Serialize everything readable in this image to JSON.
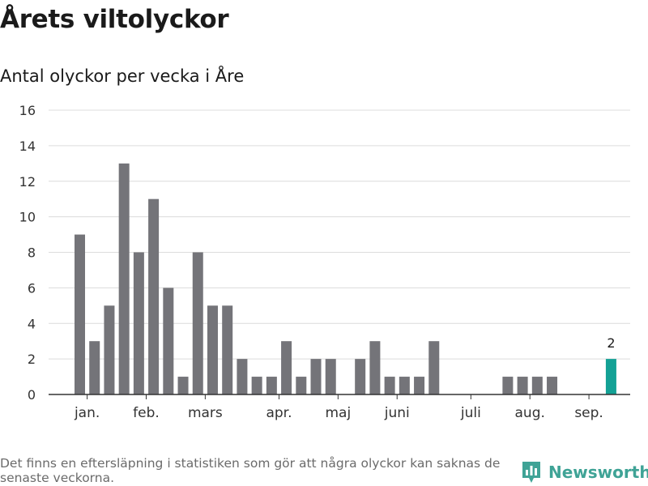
{
  "title": "Årets viltolyckor",
  "subtitle": "Antal olyckor per vecka i Åre",
  "footnote": "Det finns en eftersläpning i statistiken som gör att några olyckor kan saknas de senaste veckorna.",
  "brand": {
    "name": "Newsworthy",
    "icon": "newsworthy-bar-chart-logo-icon",
    "color": "#3fa396"
  },
  "chart_data": {
    "type": "bar",
    "x_unit": "week",
    "x": [
      1,
      2,
      3,
      4,
      5,
      6,
      7,
      8,
      9,
      10,
      11,
      12,
      13,
      14,
      15,
      16,
      17,
      18,
      19,
      20,
      21,
      22,
      23,
      24,
      25,
      26,
      27,
      28,
      29,
      30,
      31,
      32,
      33,
      34,
      35,
      36,
      37,
      38
    ],
    "values": [
      9,
      3,
      5,
      13,
      8,
      11,
      6,
      1,
      8,
      5,
      5,
      2,
      1,
      1,
      3,
      1,
      2,
      2,
      0,
      2,
      3,
      1,
      1,
      1,
      3,
      0,
      0,
      0,
      0,
      1,
      1,
      1,
      1,
      0,
      0,
      0,
      2,
      null
    ],
    "highlight_index": 36,
    "highlight_label": "2",
    "ylim": [
      0,
      16
    ],
    "yticks": [
      0,
      2,
      4,
      6,
      8,
      10,
      12,
      14,
      16
    ],
    "xticks": [
      {
        "label": "jan.",
        "week": 1.5
      },
      {
        "label": "feb.",
        "week": 5.5
      },
      {
        "label": "mars",
        "week": 9.5
      },
      {
        "label": "apr.",
        "week": 14.5
      },
      {
        "label": "maj",
        "week": 18.5
      },
      {
        "label": "juni",
        "week": 22.5
      },
      {
        "label": "juli",
        "week": 27.5
      },
      {
        "label": "aug.",
        "week": 31.5
      },
      {
        "label": "sep.",
        "week": 35.5
      }
    ],
    "colors": {
      "bar": "#747479",
      "highlight": "#13a195",
      "grid": "#dcdcdc",
      "axis": "#333333"
    },
    "grid": true
  }
}
